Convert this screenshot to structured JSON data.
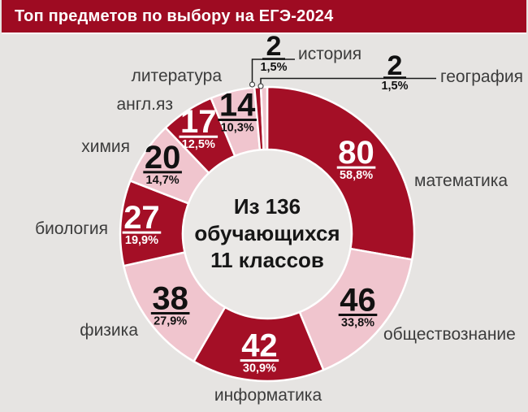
{
  "header": {
    "title": "Топ предметов по выбору на ЕГЭ-2024"
  },
  "chart_data": {
    "type": "pie",
    "subtype": "donut",
    "title": "Топ предметов по выбору на ЕГЭ-2024",
    "total_students_shown": 136,
    "categories": [
      "математика",
      "обществознание",
      "информатика",
      "физика",
      "биология",
      "химия",
      "англ.яз",
      "литература",
      "история",
      "география"
    ],
    "values": [
      80,
      46,
      42,
      38,
      27,
      20,
      17,
      14,
      2,
      2
    ],
    "percent_labels": [
      "58,8%",
      "33,8%",
      "30,9%",
      "27,9%",
      "19,9%",
      "14,7%",
      "12,5%",
      "10,3%",
      "1,5%",
      "1,5%"
    ],
    "slice_colors": [
      "#A40F26",
      "#F0C5CE",
      "#A40F26",
      "#F0C5CE",
      "#A40F26",
      "#F0C5CE",
      "#A40F26",
      "#F0C5CE",
      "#A40F26",
      "#F0C5CE"
    ],
    "value_label_colors": [
      "#FFFFFF",
      "#111111",
      "#FFFFFF",
      "#111111",
      "#FFFFFF",
      "#111111",
      "#FFFFFF",
      "#111111",
      "#111111",
      "#111111"
    ],
    "center_label": {
      "lines": [
        "Из 136",
        "обучающихся",
        "11 классов"
      ]
    },
    "legend_position": "none",
    "start_angle_deg": 0,
    "direction": "clockwise",
    "callout_categories": [
      "история",
      "география"
    ]
  },
  "colors": {
    "header_bar": "#9E0B22",
    "background": "#E6E4E2",
    "donut_hole": "#EAE8E6",
    "dark_slice": "#A40F26",
    "pink_slice": "#F0C5CE",
    "category_label": "#3C3C3C",
    "leader_line": "#1A1A1A"
  }
}
